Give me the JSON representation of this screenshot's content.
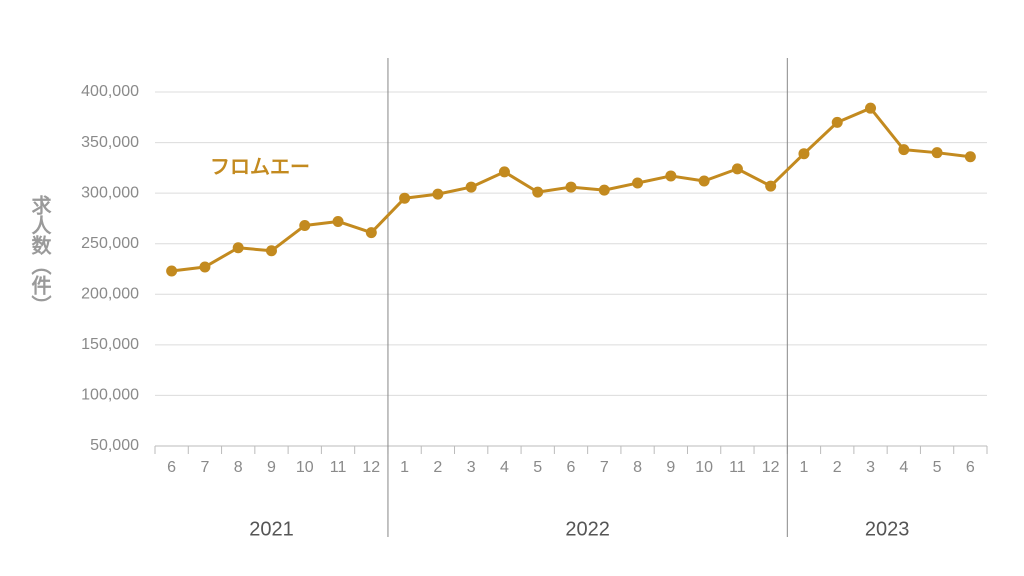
{
  "chart_data": {
    "type": "line",
    "y_label": "求人数（件）",
    "groups": [
      {
        "label": "2021",
        "categories": [
          "6",
          "7",
          "8",
          "9",
          "10",
          "11",
          "12"
        ]
      },
      {
        "label": "2022",
        "categories": [
          "1",
          "2",
          "3",
          "4",
          "5",
          "6",
          "7",
          "8",
          "9",
          "10",
          "11",
          "12"
        ]
      },
      {
        "label": "2023",
        "categories": [
          "1",
          "2",
          "3",
          "4",
          "5",
          "6"
        ]
      }
    ],
    "series": [
      {
        "name": "フロムエー",
        "color": "#c38a1f",
        "values": [
          223000,
          227000,
          246000,
          243000,
          268000,
          272000,
          261000,
          295000,
          299000,
          306000,
          321000,
          301000,
          306000,
          303000,
          310000,
          317000,
          312000,
          324000,
          307000,
          339000,
          370000,
          384000,
          343000,
          340000,
          336000
        ]
      }
    ],
    "ylim": [
      50000,
      400000
    ],
    "yticks": [
      {
        "value": 50000,
        "label": "50,000"
      },
      {
        "value": 100000,
        "label": "100,000"
      },
      {
        "value": 150000,
        "label": "150,000"
      },
      {
        "value": 200000,
        "label": "200,000"
      },
      {
        "value": 250000,
        "label": "250,000"
      },
      {
        "value": 300000,
        "label": "300,000"
      },
      {
        "value": 350000,
        "label": "350,000"
      },
      {
        "value": 400000,
        "label": "400,000"
      }
    ],
    "grid": true
  }
}
